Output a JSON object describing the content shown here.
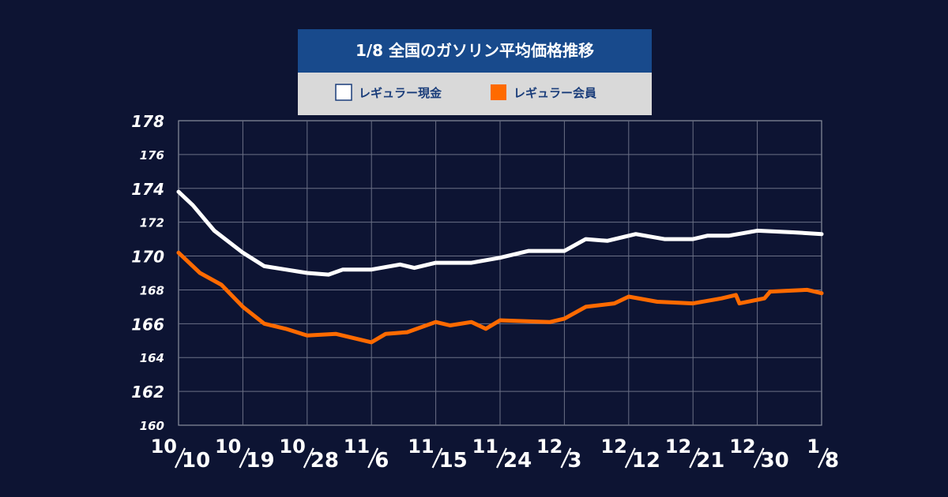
{
  "chart_data": {
    "type": "line",
    "title": "1/8  全国のガソリン平均価格推移",
    "ylim": [
      160,
      178
    ],
    "yticks": [
      {
        "value": 160,
        "label": "160"
      },
      {
        "value": 162,
        "label": "162"
      },
      {
        "value": 164,
        "label": "164"
      },
      {
        "value": 166,
        "label": "166"
      },
      {
        "value": 168,
        "label": "168"
      },
      {
        "value": 170,
        "label": "170"
      },
      {
        "value": 172,
        "label": "172"
      },
      {
        "value": 174,
        "label": "174"
      },
      {
        "value": 176,
        "label": "176"
      },
      {
        "value": 178,
        "label": "178"
      }
    ],
    "xlim": [
      0,
      90
    ],
    "xticks": [
      {
        "day": 0,
        "label": "10/10",
        "month": "10",
        "date": "10"
      },
      {
        "day": 9,
        "label": "10/19",
        "month": "10",
        "date": "19"
      },
      {
        "day": 18,
        "label": "10/28",
        "month": "10",
        "date": "28"
      },
      {
        "day": 27,
        "label": "11/6",
        "month": "11",
        "date": "6"
      },
      {
        "day": 36,
        "label": "11/15",
        "month": "11",
        "date": "15"
      },
      {
        "day": 45,
        "label": "11/24",
        "month": "11",
        "date": "24"
      },
      {
        "day": 54,
        "label": "12/3",
        "month": "12",
        "date": "3"
      },
      {
        "day": 63,
        "label": "12/12",
        "month": "12",
        "date": "12"
      },
      {
        "day": 72,
        "label": "12/21",
        "month": "12",
        "date": "21"
      },
      {
        "day": 81,
        "label": "12/30",
        "month": "12",
        "date": "30"
      },
      {
        "day": 90,
        "label": "1/8",
        "month": "1",
        "date": "8"
      }
    ],
    "series": [
      {
        "name": "レギュラー現金",
        "color": "#ffffff",
        "legend_fill": "#ffffff",
        "points": [
          [
            0,
            173.8
          ],
          [
            2,
            173.0
          ],
          [
            5,
            171.5
          ],
          [
            9,
            170.2
          ],
          [
            12,
            169.4
          ],
          [
            15,
            169.2
          ],
          [
            18,
            169.0
          ],
          [
            21,
            168.9
          ],
          [
            23,
            169.2
          ],
          [
            27,
            169.2
          ],
          [
            31,
            169.5
          ],
          [
            33,
            169.3
          ],
          [
            36,
            169.6
          ],
          [
            41,
            169.6
          ],
          [
            45,
            169.9
          ],
          [
            49,
            170.3
          ],
          [
            54,
            170.3
          ],
          [
            57,
            171.0
          ],
          [
            60,
            170.9
          ],
          [
            64,
            171.3
          ],
          [
            68,
            171.0
          ],
          [
            72,
            171.0
          ],
          [
            74,
            171.2
          ],
          [
            77,
            171.2
          ],
          [
            81,
            171.5
          ],
          [
            86,
            171.4
          ],
          [
            90,
            171.3
          ]
        ]
      },
      {
        "name": "レギュラー会員",
        "color": "#ff6a00",
        "legend_fill": "#ff6a00",
        "points": [
          [
            0,
            170.2
          ],
          [
            3,
            169.0
          ],
          [
            6,
            168.3
          ],
          [
            9,
            167.0
          ],
          [
            12,
            166.0
          ],
          [
            15,
            165.7
          ],
          [
            18,
            165.3
          ],
          [
            22,
            165.4
          ],
          [
            27,
            164.9
          ],
          [
            29,
            165.4
          ],
          [
            32,
            165.5
          ],
          [
            36,
            166.1
          ],
          [
            38,
            165.9
          ],
          [
            41,
            166.1
          ],
          [
            43,
            165.7
          ],
          [
            45,
            166.2
          ],
          [
            52,
            166.1
          ],
          [
            54,
            166.3
          ],
          [
            57,
            167.0
          ],
          [
            61,
            167.2
          ],
          [
            63,
            167.6
          ],
          [
            67,
            167.3
          ],
          [
            72,
            167.2
          ],
          [
            76,
            167.5
          ],
          [
            78,
            167.7
          ],
          [
            78.5,
            167.2
          ],
          [
            82,
            167.5
          ],
          [
            82.8,
            167.9
          ],
          [
            88,
            168.0
          ],
          [
            90,
            167.8
          ]
        ]
      }
    ]
  }
}
